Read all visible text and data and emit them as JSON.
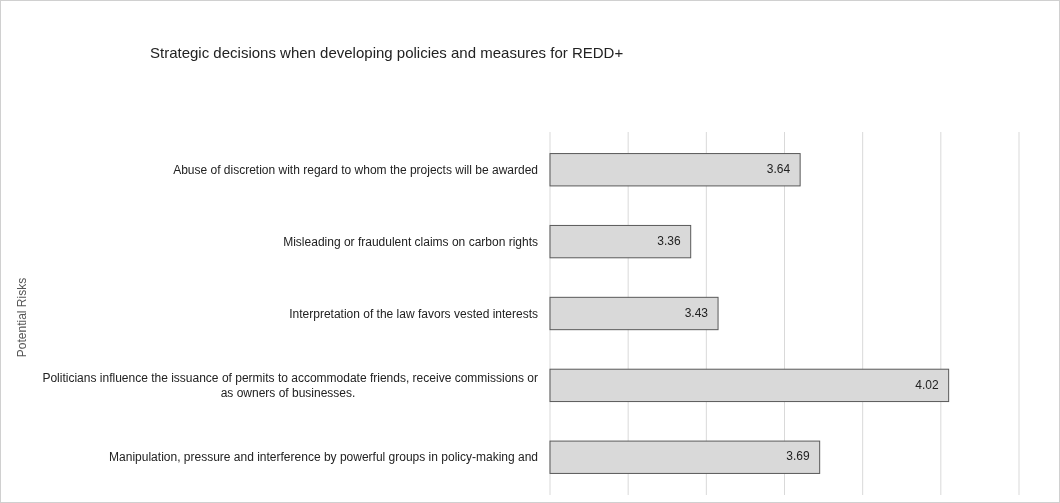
{
  "chart_data": {
    "type": "bar",
    "orientation": "horizontal",
    "title": "Strategic decisions when developing policies and measures for REDD+",
    "ylabel": "Potential Risks",
    "categories": [
      "Abuse of discretion with regard to whom the projects will be awarded",
      "Misleading or fraudulent claims on carbon rights",
      "Interpretation of the law favors vested interests",
      "Politicians influence the issuance of permits to accommodate friends, receive commissions or as owners of businesses.",
      "Manipulation, pressure and interference by powerful groups in policy-making and"
    ],
    "values": [
      3.64,
      3.36,
      3.43,
      4.02,
      3.69
    ],
    "color": "#d9d9d9",
    "data_labels": true,
    "xlim": [
      3,
      4.2
    ],
    "xticks": [
      {
        "value": 3,
        "label": null
      },
      {
        "value": 3.2,
        "label": null
      },
      {
        "value": 3.4,
        "label": null
      },
      {
        "value": 3.6,
        "label": null
      },
      {
        "value": 3.8,
        "label": null
      },
      {
        "value": 4,
        "label": null
      },
      {
        "value": 4.2,
        "label": null
      }
    ],
    "grid": "x",
    "tick_labels": "y"
  }
}
